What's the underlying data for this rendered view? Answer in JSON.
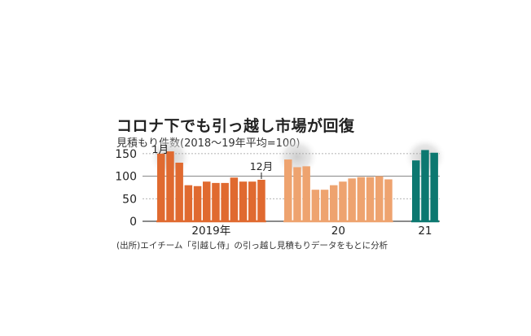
{
  "chart_data": {
    "type": "bar",
    "title": "コロナ下でも引っ越し市場が回復",
    "subtitle": "見積もり件数(2018〜19年平均=100)",
    "source": "(出所)エイチーム「引越し侍」の引っ越し見積もりデータをもとに分析",
    "ylim": [
      0,
      175
    ],
    "yticks": [
      0,
      50,
      100,
      150
    ],
    "grid": true,
    "groups": [
      {
        "label": "2019年",
        "color": "#e06a30",
        "values": [
          150,
          155,
          130,
          80,
          78,
          88,
          85,
          85,
          97,
          88,
          88,
          92
        ]
      },
      {
        "label": "20",
        "color": "#eea36f",
        "values": [
          137,
          120,
          122,
          70,
          70,
          80,
          88,
          95,
          98,
          98,
          100,
          93
        ]
      },
      {
        "label": "21",
        "color": "#0c7870",
        "values": [
          135,
          158,
          152
        ]
      }
    ],
    "annotations": [
      {
        "text": "1月",
        "group": 0,
        "index": 0
      },
      {
        "text": "12月",
        "group": 0,
        "index": 11
      }
    ],
    "highlights": [
      {
        "group": 0,
        "from": 0,
        "to": 2
      },
      {
        "group": 1,
        "from": 0,
        "to": 2
      },
      {
        "group": 2,
        "from": 0,
        "to": 2
      }
    ]
  }
}
